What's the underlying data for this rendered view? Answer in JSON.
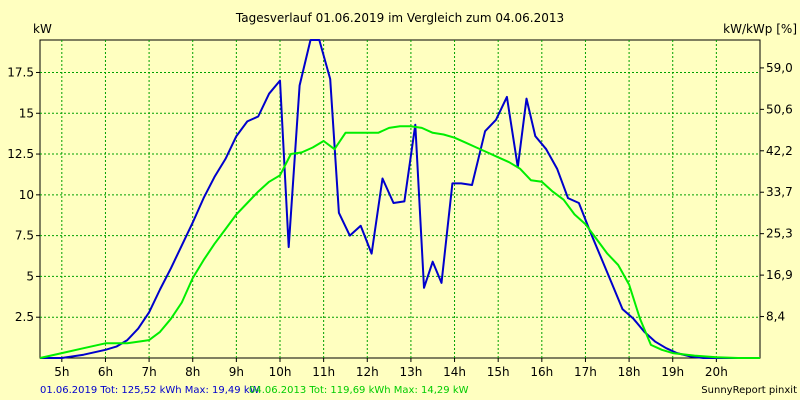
{
  "chart_data": {
    "type": "line",
    "title": "Tagesverlauf 01.06.2019 im Vergleich zum 04.06.2013",
    "ylabel_left": "kW",
    "ylabel_right": "kW/kWp [%]",
    "x_unit": "hour",
    "xlim": [
      4.5,
      21.0
    ],
    "ylim": [
      0,
      19.49
    ],
    "x_ticks": [
      5,
      6,
      7,
      8,
      9,
      10,
      11,
      12,
      13,
      14,
      15,
      16,
      17,
      18,
      19,
      20
    ],
    "x_tick_labels": [
      "5h",
      "6h",
      "7h",
      "8h",
      "9h",
      "10h",
      "11h",
      "12h",
      "13h",
      "14h",
      "15h",
      "16h",
      "17h",
      "18h",
      "19h",
      "20h"
    ],
    "y_ticks": [
      2.5,
      5,
      7.5,
      10,
      12.5,
      15,
      17.5
    ],
    "y_tick_labels": [
      "2.5",
      "5",
      "7.5",
      "10",
      "12.5",
      "15",
      "17.5"
    ],
    "y2_ticks": [
      2.54,
      5.08,
      7.62,
      10.16,
      12.7,
      15.24,
      17.78
    ],
    "y2_tick_labels": [
      "8,4",
      "16,9",
      "25,3",
      "33,7",
      "42,2",
      "50,6",
      "59,0"
    ],
    "grid": true,
    "series": [
      {
        "name": "01.06.2019",
        "color": "#0000cc",
        "x": [
          4.5,
          5.0,
          5.5,
          6.0,
          6.25,
          6.5,
          6.75,
          7.0,
          7.25,
          7.5,
          7.75,
          8.0,
          8.25,
          8.5,
          8.75,
          9.0,
          9.25,
          9.5,
          9.75,
          10.0,
          10.2,
          10.45,
          10.7,
          10.9,
          11.15,
          11.35,
          11.6,
          11.85,
          12.1,
          12.35,
          12.6,
          12.85,
          13.1,
          13.3,
          13.5,
          13.7,
          13.95,
          14.15,
          14.4,
          14.7,
          14.95,
          15.2,
          15.45,
          15.65,
          15.85,
          16.1,
          16.35,
          16.6,
          16.85,
          17.1,
          17.35,
          17.6,
          17.85,
          18.1,
          18.35,
          18.6,
          18.85,
          19.1,
          19.4,
          19.7,
          20.0,
          20.3,
          21.0
        ],
        "y": [
          0,
          0,
          0.2,
          0.5,
          0.7,
          1.1,
          1.8,
          2.8,
          4.2,
          5.5,
          6.9,
          8.3,
          9.8,
          11.1,
          12.2,
          13.6,
          14.5,
          14.8,
          16.2,
          17.0,
          6.8,
          16.7,
          19.49,
          19.49,
          17.1,
          8.9,
          7.5,
          8.1,
          6.4,
          11.0,
          9.5,
          9.6,
          14.3,
          4.3,
          5.9,
          4.6,
          10.7,
          10.7,
          10.6,
          13.9,
          14.6,
          16.0,
          11.7,
          15.9,
          13.6,
          12.8,
          11.6,
          9.8,
          9.5,
          7.8,
          6.2,
          4.6,
          3.0,
          2.4,
          1.6,
          1.0,
          0.6,
          0.3,
          0.1,
          0,
          0,
          0,
          0
        ]
      },
      {
        "name": "04.06.2013",
        "color": "#00ee00",
        "x": [
          4.5,
          5.0,
          5.5,
          6.0,
          6.5,
          7.0,
          7.25,
          7.5,
          7.75,
          8.0,
          8.25,
          8.5,
          8.75,
          9.0,
          9.25,
          9.5,
          9.75,
          10.0,
          10.25,
          10.5,
          10.75,
          11.0,
          11.25,
          11.5,
          11.75,
          12.0,
          12.25,
          12.5,
          12.75,
          13.0,
          13.25,
          13.5,
          13.75,
          14.0,
          14.25,
          14.5,
          14.75,
          15.0,
          15.25,
          15.5,
          15.75,
          16.0,
          16.25,
          16.5,
          16.75,
          17.0,
          17.25,
          17.5,
          17.75,
          18.0,
          18.25,
          18.5,
          18.75,
          19.0,
          19.5,
          20.0,
          20.5,
          21.0
        ],
        "y": [
          0,
          0.3,
          0.6,
          0.9,
          0.9,
          1.1,
          1.6,
          2.4,
          3.4,
          4.9,
          6.0,
          7.0,
          7.9,
          8.8,
          9.5,
          10.2,
          10.8,
          11.2,
          12.5,
          12.6,
          12.9,
          13.3,
          12.8,
          13.8,
          13.8,
          13.8,
          13.8,
          14.1,
          14.2,
          14.2,
          14.1,
          13.8,
          13.7,
          13.5,
          13.2,
          12.9,
          12.6,
          12.3,
          12.0,
          11.6,
          10.9,
          10.8,
          10.2,
          9.7,
          8.8,
          8.2,
          7.3,
          6.4,
          5.7,
          4.5,
          2.4,
          0.8,
          0.5,
          0.3,
          0.15,
          0.05,
          0,
          0
        ]
      }
    ],
    "legend": {
      "placement": "bottom-left",
      "entries": [
        {
          "text": "01.06.2019 Tot: 125,52 kWh Max: 19,49 kW",
          "color": "#0000cc"
        },
        {
          "text": "04.06.2013 Tot: 119,69 kWh Max: 14,29 kW",
          "color": "#00cc00"
        }
      ]
    }
  },
  "footer": {
    "credit": "SunnyReport pinxit"
  }
}
